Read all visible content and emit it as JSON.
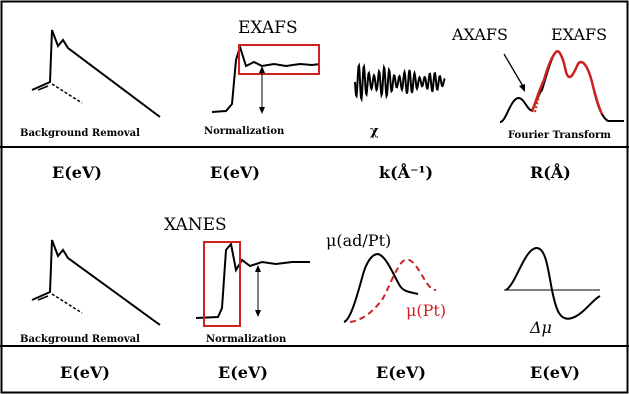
{
  "row1": {
    "panels": [
      {
        "caption": "Background Removal",
        "axis": "E(eV)"
      },
      {
        "caption": "Normalization",
        "axis": "E(eV)",
        "label": "EXAFS"
      },
      {
        "caption": "χ",
        "axis": "k(Å⁻¹)"
      },
      {
        "caption": "Fourier Transform",
        "axis": "R(Å)",
        "label_a": "AXAFS",
        "label_b": "EXAFS"
      }
    ]
  },
  "row2": {
    "panels": [
      {
        "caption": "Background Removal",
        "axis": "E(eV)"
      },
      {
        "caption": "Normalization",
        "axis": "E(eV)",
        "label": "XANES"
      },
      {
        "caption": "",
        "axis": "E(eV)",
        "label_a": "μ(ad/Pt)",
        "label_b": "μ(Pt)"
      },
      {
        "caption": "",
        "axis": "E(eV)",
        "label": "Δμ"
      }
    ]
  },
  "colors": {
    "line": "#000000",
    "highlight": "#cc2222",
    "frame": "#000000"
  }
}
